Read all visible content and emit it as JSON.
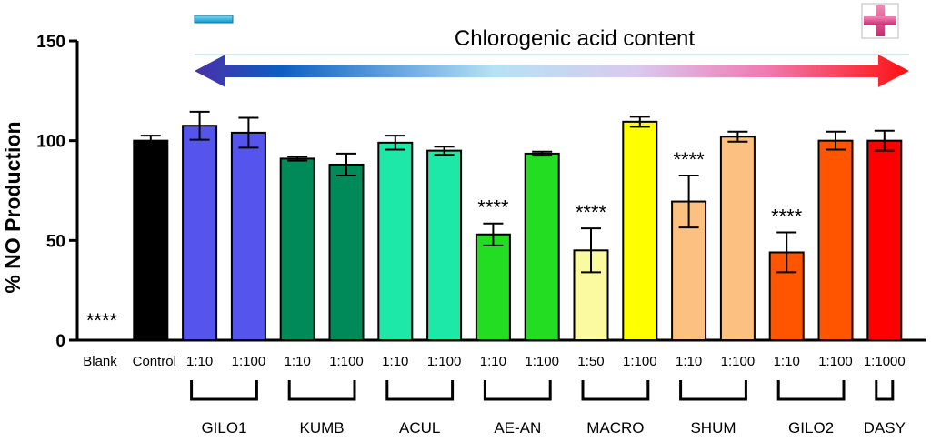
{
  "chart_data": {
    "type": "bar",
    "title": "",
    "ylabel": "% NO Production",
    "ylim": [
      0,
      150
    ],
    "yticks": [
      "0",
      "50",
      "100",
      "150"
    ],
    "annotation": "Chlorogenic acid content",
    "legend_low": "minus",
    "legend_high": "plus",
    "bars": [
      {
        "label": "Blank",
        "value": 0,
        "err": 0,
        "color": "#ffffff",
        "sig": "****"
      },
      {
        "label": "Control",
        "value": 100,
        "err": 2.5,
        "color": "#000000",
        "sig": ""
      },
      {
        "label": "1:10",
        "value": 107.5,
        "err": 7,
        "color": "#5555ee",
        "sig": ""
      },
      {
        "label": "1:100",
        "value": 104,
        "err": 7.5,
        "color": "#5555ee",
        "sig": ""
      },
      {
        "label": "1:10",
        "value": 91,
        "err": 1,
        "color": "#008a5a",
        "sig": ""
      },
      {
        "label": "1:100",
        "value": 88,
        "err": 5.5,
        "color": "#008a5a",
        "sig": ""
      },
      {
        "label": "1:10",
        "value": 99,
        "err": 3.5,
        "color": "#1ee8a8",
        "sig": ""
      },
      {
        "label": "1:100",
        "value": 95,
        "err": 2,
        "color": "#1ee8a8",
        "sig": ""
      },
      {
        "label": "1:10",
        "value": 53,
        "err": 5.5,
        "color": "#22dd22",
        "sig": "****"
      },
      {
        "label": "1:100",
        "value": 93.5,
        "err": 1,
        "color": "#22dd22",
        "sig": ""
      },
      {
        "label": "1:50",
        "value": 45,
        "err": 11,
        "color": "#fafaa0",
        "sig": "****"
      },
      {
        "label": "1:100",
        "value": 109.5,
        "err": 2.5,
        "color": "#ffff00",
        "sig": ""
      },
      {
        "label": "1:10",
        "value": 69.5,
        "err": 13,
        "color": "#fcc080",
        "sig": "****"
      },
      {
        "label": "1:100",
        "value": 102,
        "err": 2.5,
        "color": "#fcc080",
        "sig": ""
      },
      {
        "label": "1:10",
        "value": 44,
        "err": 10,
        "color": "#ff5500",
        "sig": "****"
      },
      {
        "label": "1:100",
        "value": 100,
        "err": 4.5,
        "color": "#ff5500",
        "sig": ""
      },
      {
        "label": "1:1000",
        "value": 100,
        "err": 5,
        "color": "#ff0000",
        "sig": ""
      }
    ],
    "groups": [
      {
        "name": "GILO1",
        "from": 2,
        "to": 3
      },
      {
        "name": "KUMB",
        "from": 4,
        "to": 5
      },
      {
        "name": "ACUL",
        "from": 6,
        "to": 7
      },
      {
        "name": "AE-AN",
        "from": 8,
        "to": 9
      },
      {
        "name": "MACRO",
        "from": 10,
        "to": 11
      },
      {
        "name": "SHUM",
        "from": 12,
        "to": 13
      },
      {
        "name": "GILO2",
        "from": 14,
        "to": 15
      },
      {
        "name": "DASY",
        "from": 16,
        "to": 16
      }
    ]
  }
}
